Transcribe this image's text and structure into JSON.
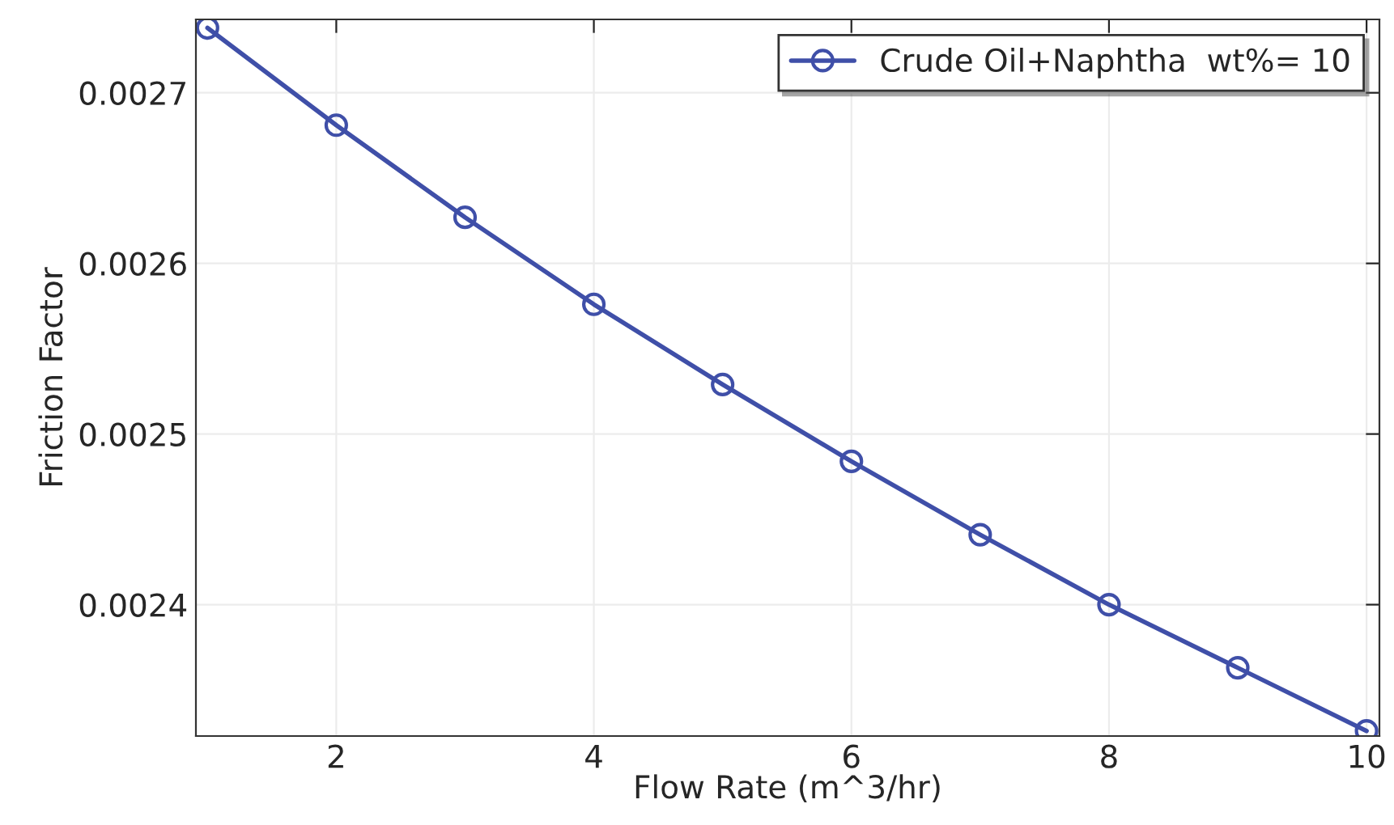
{
  "chart_data": {
    "type": "line",
    "xlabel": "Flow Rate (m^3/hr)",
    "ylabel": "Friction Factor",
    "x": [
      1,
      2,
      3,
      4,
      5,
      6,
      7,
      8,
      9,
      10
    ],
    "series": [
      {
        "name": "Crude Oil+Naphtha  wt%= 10",
        "color": "#3f4fa8",
        "values": [
          0.002738,
          0.002681,
          0.002627,
          0.002576,
          0.002529,
          0.002484,
          0.002441,
          0.0024,
          0.002363,
          0.002326
        ]
      }
    ],
    "xlim": [
      0.91,
      10.1
    ],
    "xticks": [
      2,
      4,
      6,
      8,
      10
    ],
    "ylim": [
      0.002323,
      0.002743
    ],
    "yticks": [
      0.0024,
      0.0025,
      0.0026,
      0.0027
    ],
    "grid": true,
    "legend": "top right",
    "marker": "circle",
    "line_style": "solid"
  }
}
